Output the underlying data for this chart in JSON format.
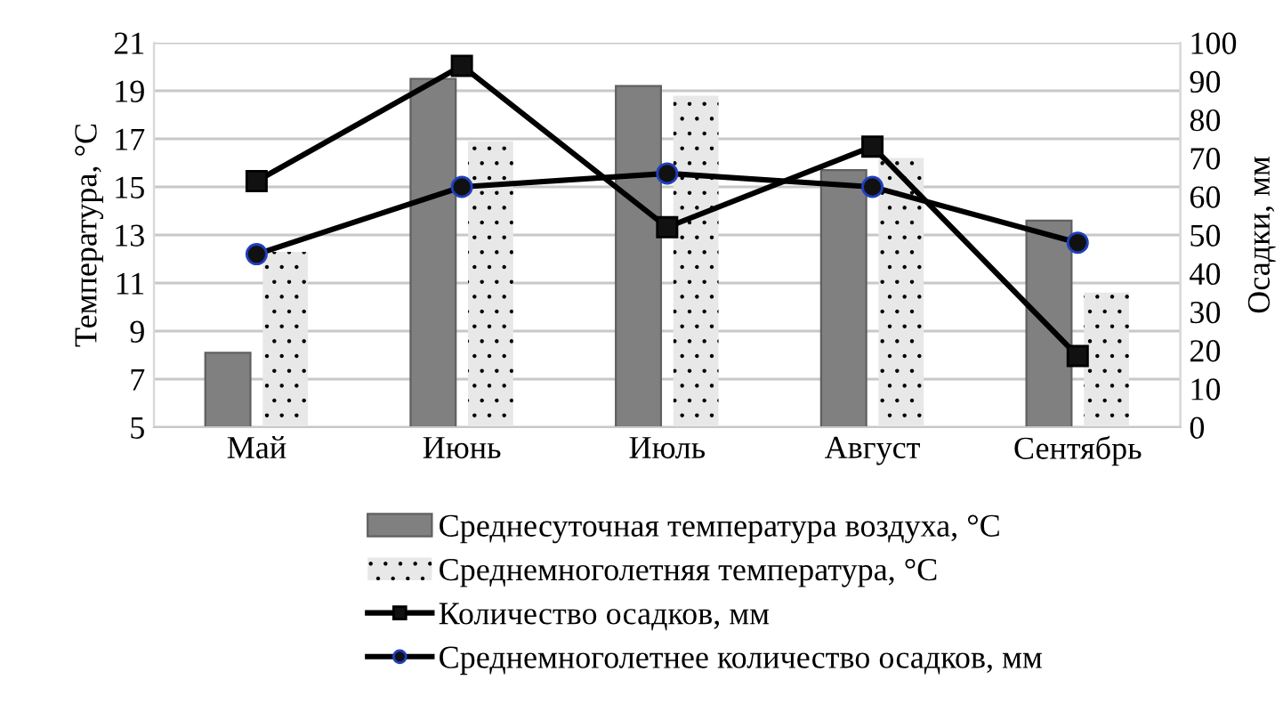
{
  "chart_data": {
    "type": "bar",
    "categories": [
      "Май",
      "Июнь",
      "Июль",
      "Август",
      "Сентябрь"
    ],
    "ylabel": "Температура, °С",
    "y2label": "Осадки, мм",
    "ylim": [
      5,
      21
    ],
    "yticks": [
      5,
      7,
      9,
      11,
      13,
      15,
      17,
      19,
      21
    ],
    "y2lim": [
      0,
      100
    ],
    "y2ticks": [
      0,
      10,
      20,
      30,
      40,
      50,
      60,
      70,
      80,
      90,
      100
    ],
    "grid": "y",
    "legend": "bottom",
    "series": [
      {
        "name": "Среднесуточная температура воздуха, °С",
        "type": "bar",
        "color": "#808080",
        "values": [
          8.1,
          19.5,
          19.2,
          15.7,
          13.6
        ]
      },
      {
        "name": "Среднемноголетняя температура, °С",
        "type": "bar",
        "color": "#e8e8e8",
        "values": [
          12.3,
          16.9,
          18.8,
          16.2,
          10.6
        ]
      },
      {
        "name": "Количество осадков, мм",
        "type": "line",
        "axis": "y2",
        "marker": "square",
        "color": "#000000",
        "values": [
          64,
          94,
          52,
          73,
          18.5
        ]
      },
      {
        "name": "Среднемноголетнее количество осадков, мм",
        "type": "line",
        "axis": "y2",
        "marker": "circle",
        "color": "#000000",
        "values": [
          45,
          62.5,
          66,
          62.5,
          48
        ]
      }
    ]
  }
}
